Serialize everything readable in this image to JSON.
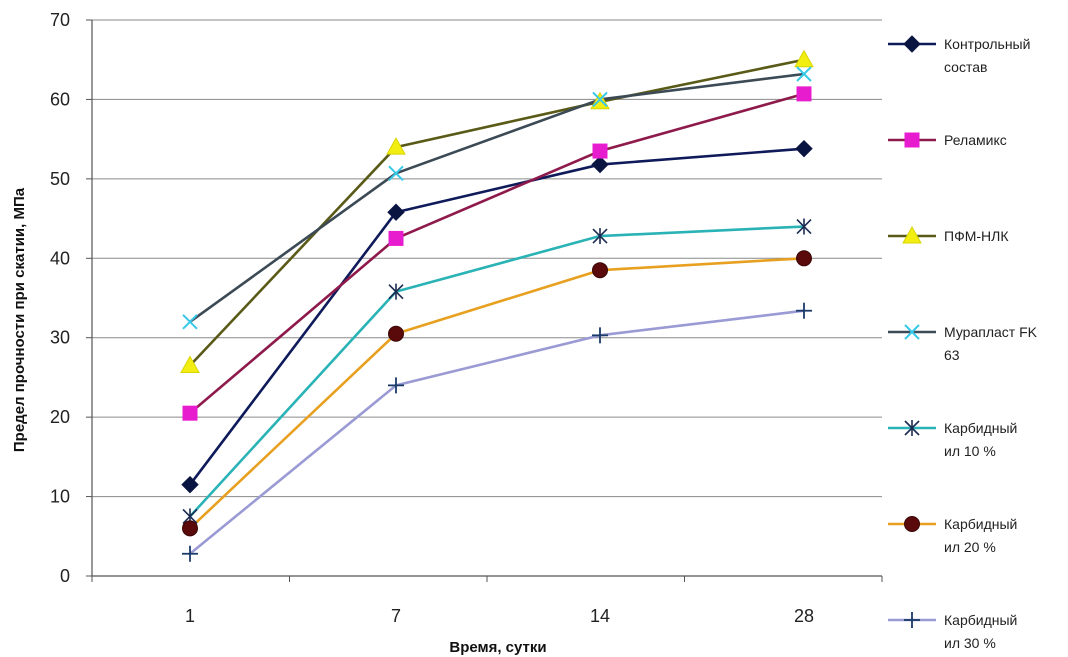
{
  "chart_data": {
    "type": "line",
    "title": "",
    "xlabel": "Время, сутки",
    "ylabel": "Предел прочности при скатии, МПа",
    "categories": [
      "1",
      "7",
      "14",
      "28"
    ],
    "ylim": [
      0,
      70
    ],
    "yticks": [
      0,
      10,
      20,
      30,
      40,
      50,
      60,
      70
    ],
    "grid": "horizontal",
    "legend_position": "right",
    "series": [
      {
        "name": "Контрольный состав",
        "legend_lines": [
          "Контрольный",
          "состав"
        ],
        "values": [
          11.5,
          45.8,
          51.8,
          53.8
        ],
        "color": "#0f1a5a",
        "marker": "diamond",
        "marker_color": "#0a1440"
      },
      {
        "name": "Реламикс",
        "legend_lines": [
          "Реламикс"
        ],
        "values": [
          20.5,
          42.5,
          53.5,
          60.7
        ],
        "color": "#8e1a4c",
        "marker": "square",
        "marker_color": "#e81ccf"
      },
      {
        "name": "ПФМ-НЛК",
        "legend_lines": [
          "ПФМ-НЛК"
        ],
        "values": [
          26.5,
          54.0,
          59.7,
          65.0
        ],
        "color": "#5a5a18",
        "marker": "triangle",
        "marker_color": "#f2ee12"
      },
      {
        "name": "Мурапласт FK 63",
        "legend_lines": [
          "Мурапласт FK",
          "63"
        ],
        "values": [
          32.0,
          50.7,
          60.0,
          63.2
        ],
        "color": "#3b4a55",
        "marker": "x",
        "marker_color": "#38c8e8"
      },
      {
        "name": "Карбидный ил 10 %",
        "legend_lines": [
          "Карбидный",
          "ил 10 %"
        ],
        "values": [
          7.5,
          35.8,
          42.8,
          44.0
        ],
        "color": "#2ab3b6",
        "marker": "star",
        "marker_color": "#1a2a50"
      },
      {
        "name": "Карбидный ил 20 %",
        "legend_lines": [
          "Карбидный",
          "ил 20 %"
        ],
        "values": [
          6.0,
          30.5,
          38.5,
          40.0
        ],
        "color": "#e8a020",
        "marker": "circle",
        "marker_color": "#5a0a0a"
      },
      {
        "name": "Карбидный ил 30 %",
        "legend_lines": [
          "Карбидный",
          "ил 30 %"
        ],
        "values": [
          2.8,
          24.0,
          30.3,
          33.4
        ],
        "color": "#9a9ad4",
        "marker": "plus",
        "marker_color": "#1a3a6a"
      }
    ]
  }
}
